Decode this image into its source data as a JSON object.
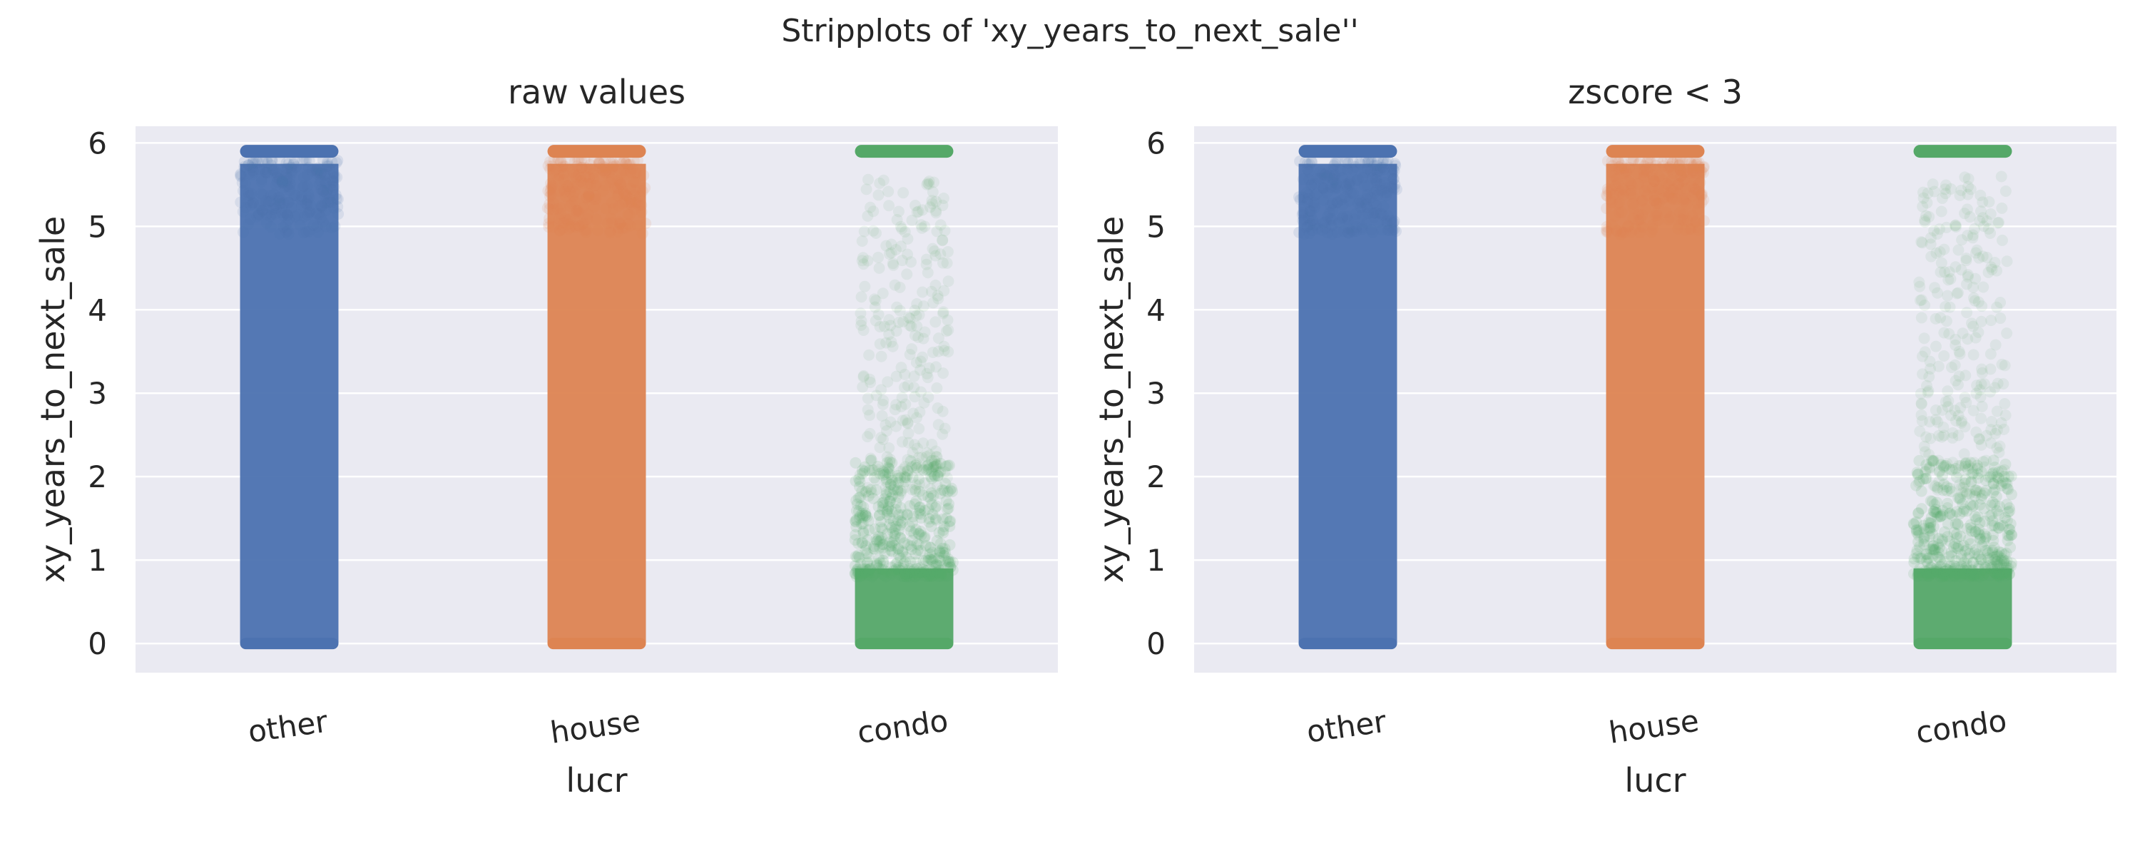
{
  "chart_data": {
    "title": "Stripplots of 'xy_years_to_next_sale''",
    "type": "scatter",
    "subtype": "stripplot",
    "grid": true,
    "legend": "none",
    "panels": [
      {
        "title": "raw values",
        "xlabel": "lucr",
        "ylabel": "xy_years_to_next_sale",
        "categories": [
          "other",
          "house",
          "condo"
        ],
        "ylim": [
          -0.35,
          6.2
        ],
        "yticks": [
          0,
          1,
          2,
          3,
          4,
          5,
          6
        ],
        "series": [
          {
            "category": "other",
            "color": "#4c72b0",
            "min": 0,
            "max": 5.9,
            "cap_value": 5.9,
            "density": "dense"
          },
          {
            "category": "house",
            "color": "#dd8452",
            "min": 0,
            "max": 5.9,
            "cap_value": 5.9,
            "density": "dense"
          },
          {
            "category": "condo",
            "color": "#55a868",
            "min": 0,
            "max": 5.9,
            "cap_value": 5.9,
            "density": "dense below 1, sparse above"
          }
        ]
      },
      {
        "title": "zscore < 3",
        "xlabel": "lucr",
        "ylabel": "xy_years_to_next_sale",
        "categories": [
          "other",
          "house",
          "condo"
        ],
        "ylim": [
          -0.35,
          6.2
        ],
        "yticks": [
          0,
          1,
          2,
          3,
          4,
          5,
          6
        ],
        "series": [
          {
            "category": "other",
            "color": "#4c72b0",
            "min": 0,
            "max": 5.9,
            "cap_value": 5.9,
            "density": "dense"
          },
          {
            "category": "house",
            "color": "#dd8452",
            "min": 0,
            "max": 5.9,
            "cap_value": 5.9,
            "density": "dense"
          },
          {
            "category": "condo",
            "color": "#55a868",
            "min": 0,
            "max": 5.9,
            "cap_value": 5.9,
            "density": "dense below 1, sparse above"
          }
        ]
      }
    ]
  }
}
